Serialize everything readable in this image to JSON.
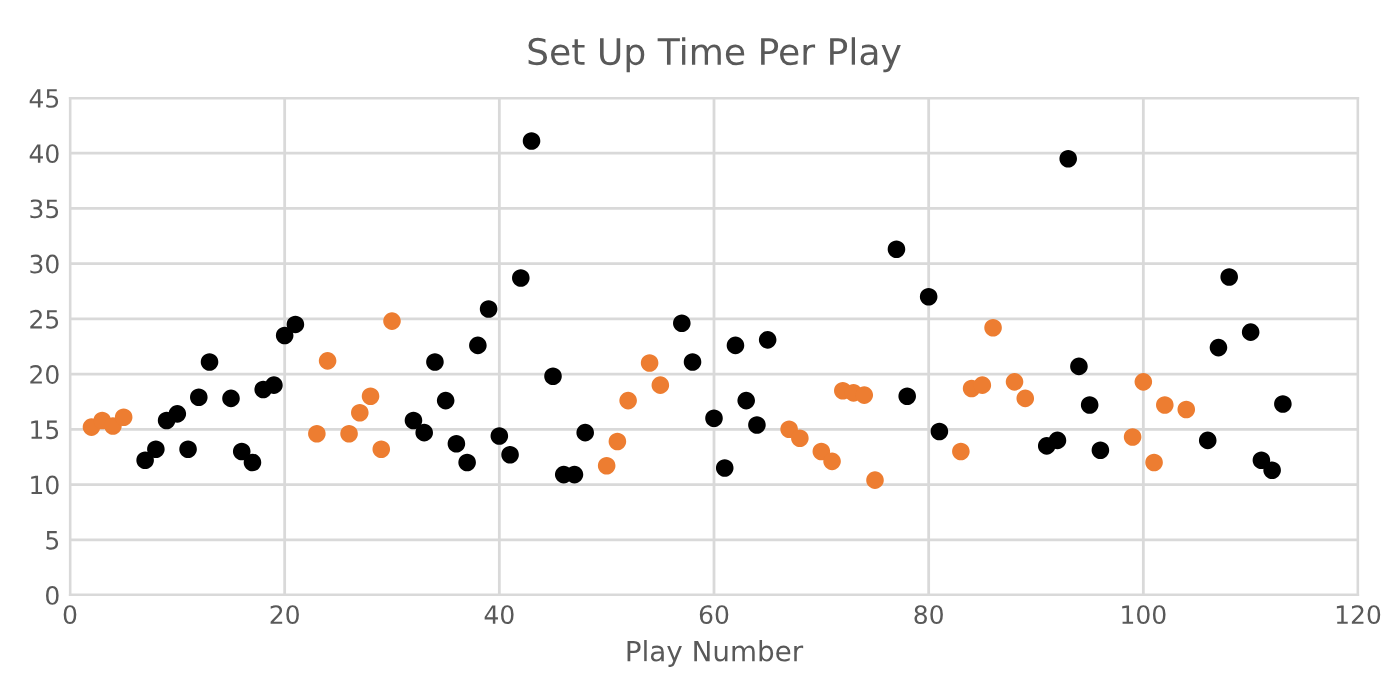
{
  "chart_data": {
    "type": "scatter",
    "title": "Set Up Time Per Play",
    "xlabel": "Play Number",
    "xlim": [
      0,
      120
    ],
    "xticks": [
      0,
      20,
      40,
      60,
      80,
      100,
      120
    ],
    "ylim": [
      0,
      45
    ],
    "yticks": [
      0,
      5,
      10,
      15,
      20,
      25,
      30,
      35,
      40,
      45
    ],
    "grid": true,
    "marker": "circle",
    "series": [
      {
        "color": "#ed7d31",
        "x": [
          2,
          3,
          4,
          5,
          23,
          24,
          26,
          27,
          28,
          29,
          30,
          50,
          51,
          52,
          54,
          55,
          67,
          68,
          70,
          71,
          72,
          73,
          74,
          75,
          83,
          84,
          85,
          86,
          88,
          89,
          99,
          100,
          101,
          102,
          104
        ],
        "values": [
          15.2,
          15.8,
          15.3,
          16.1,
          14.6,
          21.2,
          14.6,
          16.5,
          18,
          13.2,
          24.8,
          11.7,
          13.9,
          17.6,
          21,
          19,
          15,
          14.2,
          13,
          12.1,
          18.5,
          18.3,
          18.1,
          10.4,
          13,
          18.7,
          19,
          24.2,
          19.3,
          17.8,
          14.3,
          19.3,
          12,
          17.2,
          16.8
        ]
      },
      {
        "color": "#000000",
        "x": [
          7,
          8,
          9,
          10,
          11,
          12,
          13,
          15,
          16,
          17,
          18,
          19,
          20,
          21,
          32,
          33,
          34,
          35,
          36,
          37,
          38,
          39,
          40,
          41,
          42,
          43,
          45,
          46,
          47,
          48,
          57,
          58,
          60,
          61,
          62,
          63,
          64,
          65,
          77,
          78,
          80,
          81,
          91,
          92,
          93,
          94,
          95,
          96,
          106,
          107,
          108,
          110,
          111,
          112,
          113
        ],
        "values": [
          12.2,
          13.2,
          15.8,
          16.4,
          13.2,
          17.9,
          21.1,
          17.8,
          13,
          12,
          18.6,
          19,
          23.5,
          24.5,
          15.8,
          14.7,
          21.1,
          17.6,
          13.7,
          12,
          22.6,
          25.9,
          14.4,
          12.7,
          28.7,
          41.1,
          19.8,
          10.9,
          10.9,
          14.7,
          24.6,
          21.1,
          16,
          11.5,
          22.6,
          17.6,
          15.4,
          23.1,
          31.3,
          18,
          27,
          14.8,
          13.5,
          14,
          39.5,
          20.7,
          17.2,
          13.1,
          14,
          22.4,
          28.8,
          23.8,
          12.2,
          11.3,
          17.3
        ]
      }
    ]
  }
}
